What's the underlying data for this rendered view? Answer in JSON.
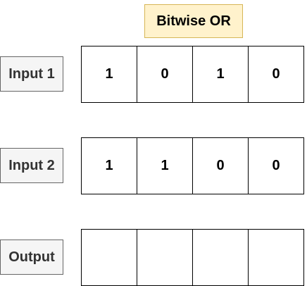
{
  "title": "Bitwise OR",
  "rows": [
    {
      "label": "Input 1",
      "bits": [
        "1",
        "0",
        "1",
        "0"
      ]
    },
    {
      "label": "Input 2",
      "bits": [
        "1",
        "1",
        "0",
        "0"
      ]
    },
    {
      "label": "Output",
      "bits": [
        "",
        "",
        "",
        ""
      ]
    }
  ],
  "colors": {
    "title_fill": "#fff2cc",
    "title_border": "#d6b656",
    "label_fill": "#f5f5f5",
    "label_border": "#666666",
    "cell_border": "#000000"
  }
}
